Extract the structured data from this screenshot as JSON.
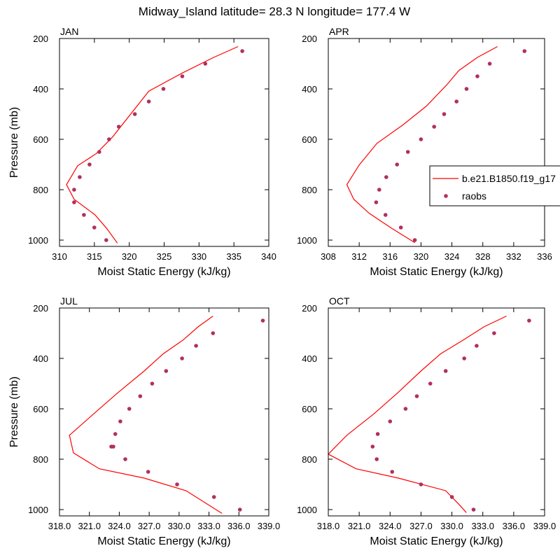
{
  "title": "Midway_Island  latitude= 28.3 N longitude= 177.4 W",
  "colors": {
    "model": "#ff0000",
    "obs": "#b03060",
    "axis": "#000000"
  },
  "legend": {
    "model_label": "b.e21.B1850.f19_g17",
    "obs_label": "raobs"
  },
  "chart_data": [
    {
      "type": "line",
      "panel": "JAN",
      "xlabel": "Moist Static Energy (kJ/kg)",
      "ylabel": "Pressure (mb)",
      "xlim": [
        310,
        340
      ],
      "ylim": [
        200,
        1025
      ],
      "xticks": [
        310,
        315,
        320,
        325,
        330,
        335,
        340
      ],
      "xtick_labels": [
        "310",
        "315",
        "320",
        "325",
        "330",
        "335",
        "340"
      ],
      "yticks": [
        200,
        400,
        600,
        800,
        1000
      ],
      "ytick_labels": [
        "200",
        "400",
        "600",
        "800",
        "1000"
      ],
      "series": [
        {
          "name": "b.e21.B1850.f19_g17",
          "x": [
            335.6,
            332.1,
            327.6,
            322.8,
            317.6,
            315.3,
            312.6,
            311.0,
            312.1,
            315.1,
            316.8,
            318.3
          ],
          "y": [
            232,
            275,
            337,
            409,
            591,
            656,
            705,
            780,
            838,
            900,
            955,
            1012
          ]
        },
        {
          "name": "raobs",
          "x": [
            336.2,
            330.9,
            327.6,
            324.9,
            322.8,
            320.8,
            318.5,
            317.1,
            315.7,
            314.3,
            312.9,
            312.1,
            312.1,
            313.5,
            315.0,
            316.7
          ],
          "y": [
            250,
            300,
            350,
            400,
            450,
            500,
            550,
            600,
            650,
            700,
            750,
            800,
            850,
            900,
            950,
            1000
          ]
        }
      ]
    },
    {
      "type": "line",
      "panel": "APR",
      "xlabel": "Moist Static Energy (kJ/kg)",
      "ylabel": "Pressure (mb)",
      "xlim": [
        308,
        336
      ],
      "ylim": [
        200,
        1025
      ],
      "xticks": [
        308,
        312,
        316,
        320,
        324,
        328,
        332,
        336
      ],
      "xtick_labels": [
        "308",
        "312",
        "316",
        "320",
        "324",
        "328",
        "332",
        "336"
      ],
      "yticks": [
        200,
        400,
        600,
        800,
        1000
      ],
      "ytick_labels": [
        "200",
        "400",
        "600",
        "800",
        "1000"
      ],
      "series": [
        {
          "name": "b.e21.B1850.f19_g17",
          "x": [
            329.9,
            327.3,
            324.9,
            323.4,
            320.7,
            317.7,
            314.3,
            312.0,
            310.4,
            311.3,
            313.3,
            316.2,
            319.2
          ],
          "y": [
            232,
            275,
            327,
            382,
            468,
            542,
            616,
            702,
            780,
            838,
            894,
            953,
            1010
          ]
        },
        {
          "name": "raobs",
          "x": [
            333.4,
            328.9,
            327.3,
            325.9,
            324.6,
            323.0,
            321.7,
            320.0,
            318.3,
            316.9,
            315.5,
            314.6,
            314.2,
            315.4,
            317.4,
            319.2
          ],
          "y": [
            250,
            300,
            350,
            400,
            450,
            500,
            550,
            600,
            650,
            700,
            750,
            800,
            850,
            900,
            950,
            1000
          ]
        }
      ]
    },
    {
      "type": "line",
      "panel": "JUL",
      "xlabel": "Moist Static Energy (kJ/kg)",
      "ylabel": "Pressure (mb)",
      "xlim": [
        318,
        339
      ],
      "ylim": [
        200,
        1025
      ],
      "xticks": [
        318,
        321,
        324,
        327,
        330,
        333,
        336,
        339
      ],
      "xtick_labels": [
        "318.0",
        "321.0",
        "324.0",
        "327.0",
        "330.0",
        "333.0",
        "336.0",
        "339.0"
      ],
      "yticks": [
        200,
        400,
        600,
        800,
        1000
      ],
      "ytick_labels": [
        "200",
        "400",
        "600",
        "800",
        "1000"
      ],
      "series": [
        {
          "name": "b.e21.B1850.f19_g17",
          "x": [
            333.4,
            331.9,
            330.4,
            328.4,
            326.5,
            323.8,
            321.4,
            319.0,
            319.4,
            322.0,
            326.5,
            330.7,
            333.1,
            334.3
          ],
          "y": [
            232,
            275,
            327,
            382,
            450,
            538,
            621,
            705,
            775,
            838,
            875,
            925,
            985,
            1015
          ]
        },
        {
          "name": "raobs",
          "x": [
            338.4,
            333.4,
            331.7,
            330.3,
            328.7,
            327.3,
            326.1,
            325.0,
            324.1,
            323.6,
            323.2,
            323.4,
            324.6,
            326.9,
            329.8,
            333.5,
            336.1
          ],
          "y": [
            250,
            300,
            350,
            400,
            450,
            500,
            550,
            600,
            650,
            700,
            750,
            750,
            800,
            850,
            900,
            950,
            1000
          ]
        }
      ]
    },
    {
      "type": "line",
      "panel": "OCT",
      "xlabel": "Moist Static Energy (kJ/kg)",
      "ylabel": "Pressure (mb)",
      "xlim": [
        318,
        339
      ],
      "ylim": [
        200,
        1025
      ],
      "xticks": [
        318,
        321,
        324,
        327,
        330,
        333,
        336,
        339
      ],
      "xtick_labels": [
        "318.0",
        "321.0",
        "324.0",
        "327.0",
        "330.0",
        "333.0",
        "336.0",
        "339.0"
      ],
      "yticks": [
        200,
        400,
        600,
        800,
        1000
      ],
      "ytick_labels": [
        "200",
        "400",
        "600",
        "800",
        "1000"
      ],
      "series": [
        {
          "name": "b.e21.B1850.f19_g17",
          "x": [
            335.3,
            333.1,
            331.1,
            328.9,
            327.0,
            324.7,
            322.4,
            319.8,
            318.0,
            320.7,
            324.8,
            329.4,
            330.7,
            331.4
          ],
          "y": [
            232,
            275,
            327,
            382,
            450,
            538,
            621,
            705,
            780,
            838,
            875,
            925,
            980,
            1012
          ]
        },
        {
          "name": "raobs",
          "x": [
            337.5,
            334.1,
            332.4,
            331.2,
            329.4,
            327.9,
            326.6,
            325.5,
            324.0,
            322.8,
            322.3,
            322.7,
            324.2,
            327.0,
            330.0,
            332.1
          ],
          "y": [
            250,
            300,
            350,
            400,
            450,
            500,
            550,
            600,
            650,
            700,
            750,
            800,
            850,
            900,
            950,
            1000
          ]
        }
      ]
    }
  ]
}
